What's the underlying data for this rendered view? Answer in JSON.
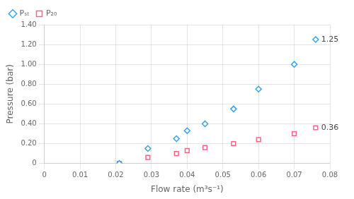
{
  "chart_data": {
    "type": "scatter",
    "x_label": "Flow rate (m³s⁻¹)",
    "y_label": "Pressure (bar)",
    "x": [
      0.021,
      0.029,
      0.037,
      0.04,
      0.045,
      0.053,
      0.06,
      0.07,
      0.076
    ],
    "series": [
      {
        "name": "Pₛₜ",
        "marker": "diamond",
        "values": [
          0.0,
          0.15,
          0.25,
          0.33,
          0.4,
          0.55,
          0.75,
          1.0,
          1.25
        ]
      },
      {
        "name": "P₂₀",
        "marker": "square",
        "values": [
          0.0,
          0.06,
          0.1,
          0.13,
          0.16,
          0.2,
          0.24,
          0.3,
          0.36
        ]
      }
    ],
    "annotations": [
      {
        "text": "1.25",
        "x": 0.076,
        "y": 1.25
      },
      {
        "text": "0.36",
        "x": 0.076,
        "y": 0.36
      }
    ],
    "xlim": [
      0,
      0.08
    ],
    "ylim": [
      0,
      1.4
    ],
    "xticks": [
      0,
      0.01,
      0.02,
      0.03,
      0.04,
      0.05,
      0.06,
      0.07,
      0.08
    ],
    "yticks": [
      0,
      {
        "value": 0.2,
        "label": "0.20"
      },
      {
        "value": 0.4,
        "label": "0.40"
      },
      {
        "value": 0.6,
        "label": "0.60"
      },
      {
        "value": 0.8,
        "label": "0.80"
      },
      {
        "value": 1.0,
        "label": "1.00"
      },
      {
        "value": 1.2,
        "label": "1.20"
      },
      {
        "value": 1.4,
        "label": "1.40"
      }
    ],
    "grid": true,
    "legend": "upper left"
  }
}
